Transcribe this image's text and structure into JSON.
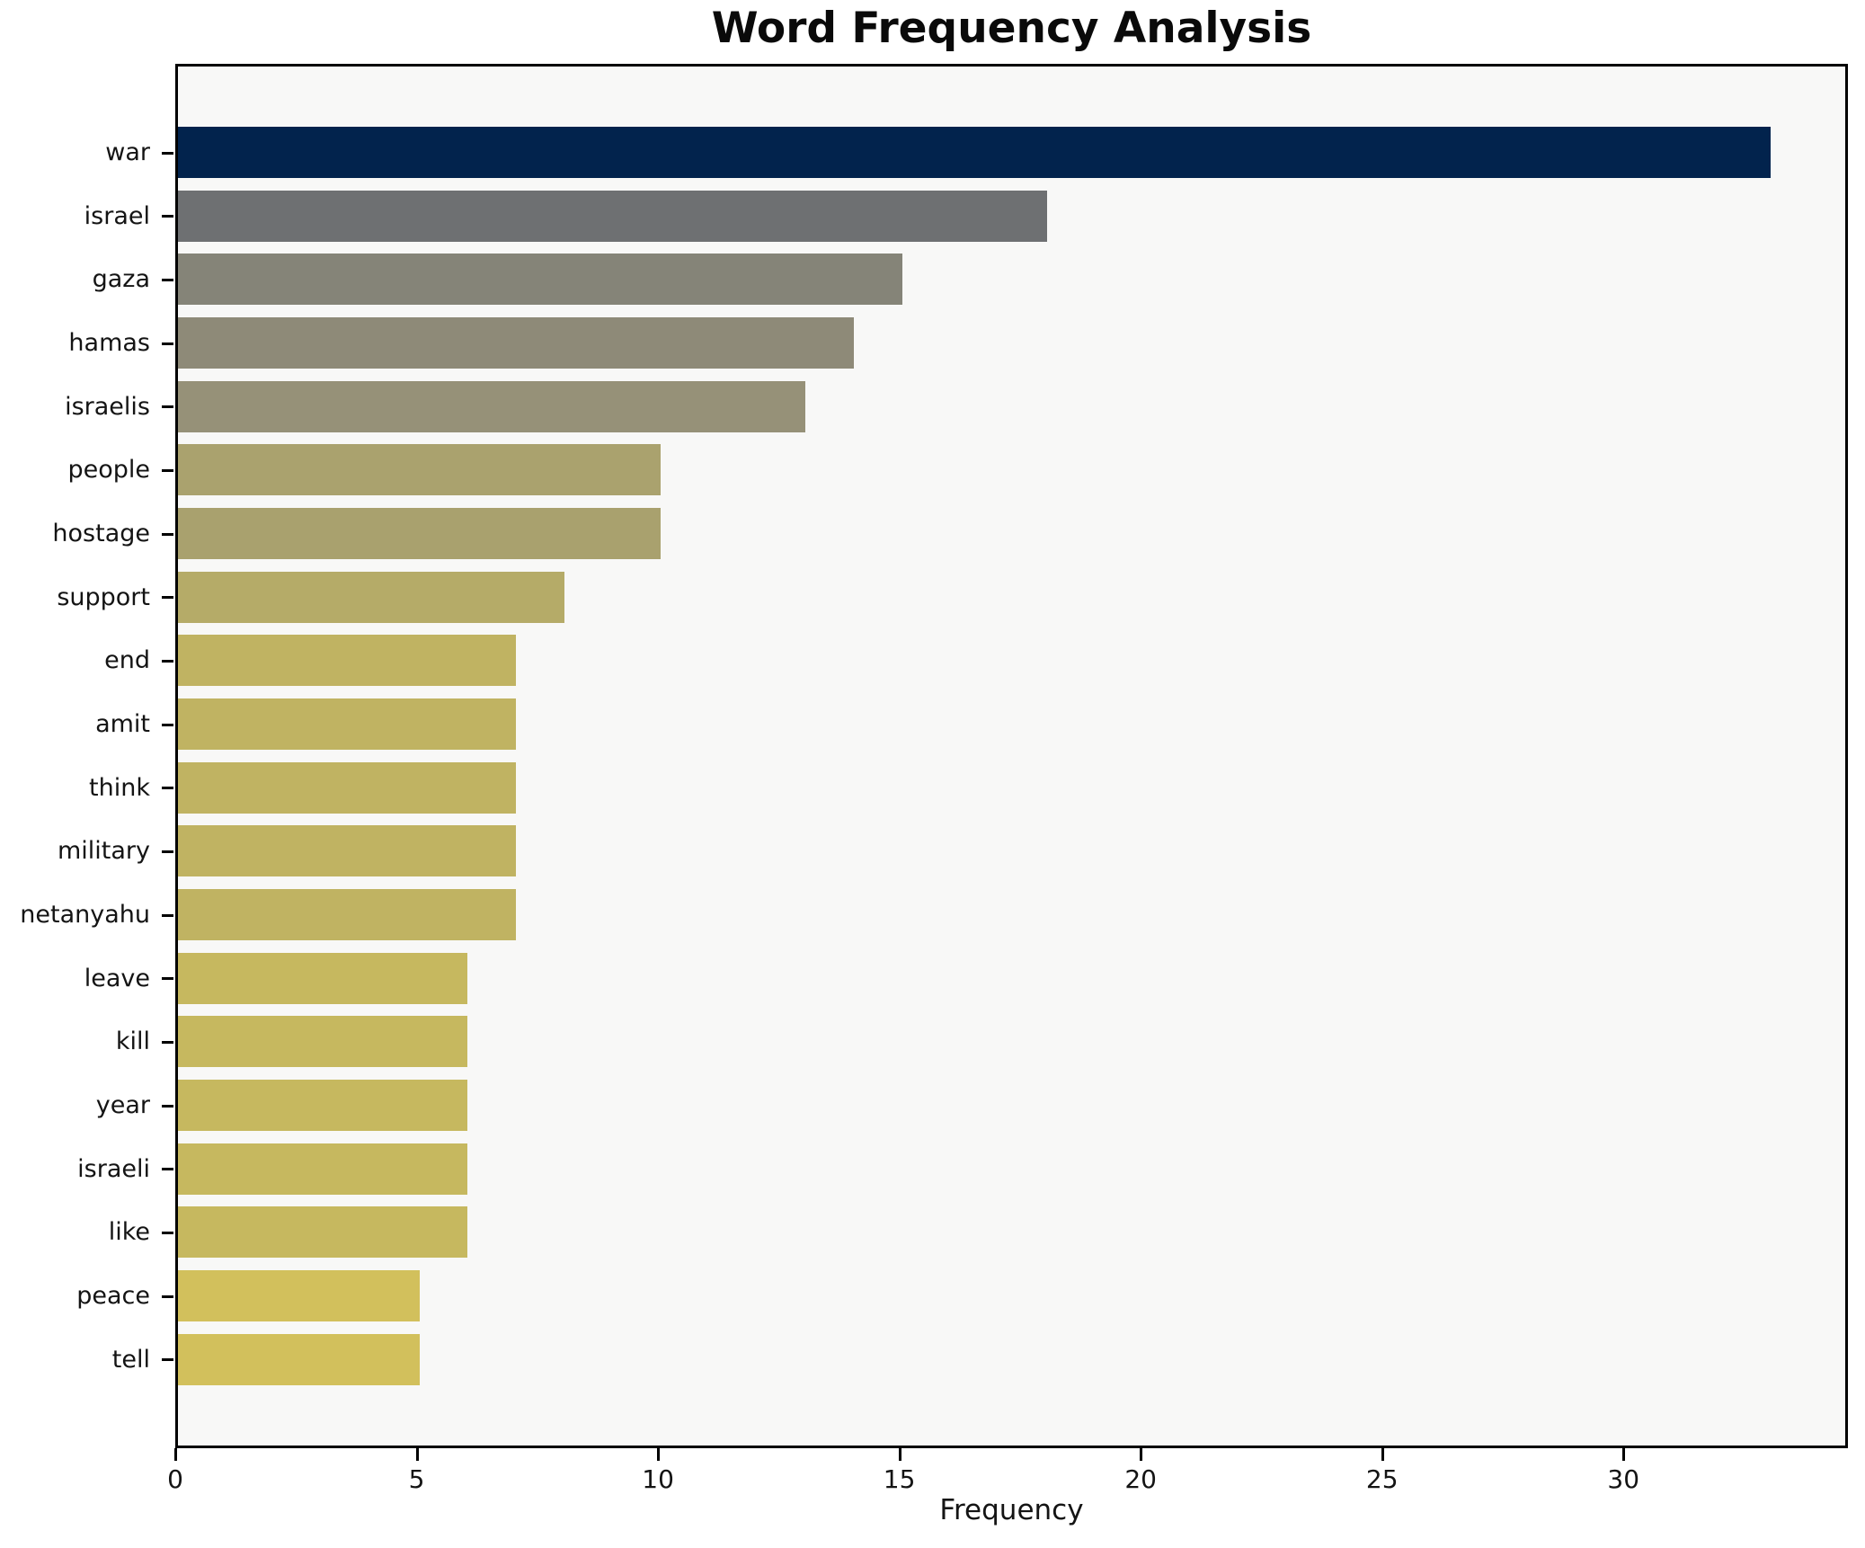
{
  "chart_data": {
    "type": "bar",
    "orientation": "horizontal",
    "title": "Word Frequency Analysis",
    "xlabel": "Frequency",
    "ylabel": "",
    "categories": [
      "war",
      "israel",
      "gaza",
      "hamas",
      "israelis",
      "people",
      "hostage",
      "support",
      "end",
      "amit",
      "think",
      "military",
      "netanyahu",
      "leave",
      "kill",
      "year",
      "israeli",
      "like",
      "peace",
      "tell"
    ],
    "values": [
      33,
      18,
      15,
      14,
      13,
      10,
      10,
      8,
      7,
      7,
      7,
      7,
      7,
      6,
      6,
      6,
      6,
      6,
      5,
      5
    ],
    "bar_colors": [
      "#02234d",
      "#6e7072",
      "#858478",
      "#8e8a78",
      "#969178",
      "#aaa26e",
      "#a9a16e",
      "#b5ab68",
      "#c0b362",
      "#c0b362",
      "#c0b362",
      "#c0b362",
      "#c0b362",
      "#c6b85f",
      "#c6b85f",
      "#c6b85f",
      "#c6b85f",
      "#c6b85f",
      "#d2c05c",
      "#d2c05c"
    ],
    "xticks": [
      0,
      5,
      10,
      15,
      20,
      25,
      30
    ],
    "xlim": [
      0,
      34.65
    ],
    "grid": false,
    "legend": null,
    "plot_background": "#f8f8f7",
    "figure_background": "#ffffff",
    "spine_color": "#000000"
  }
}
